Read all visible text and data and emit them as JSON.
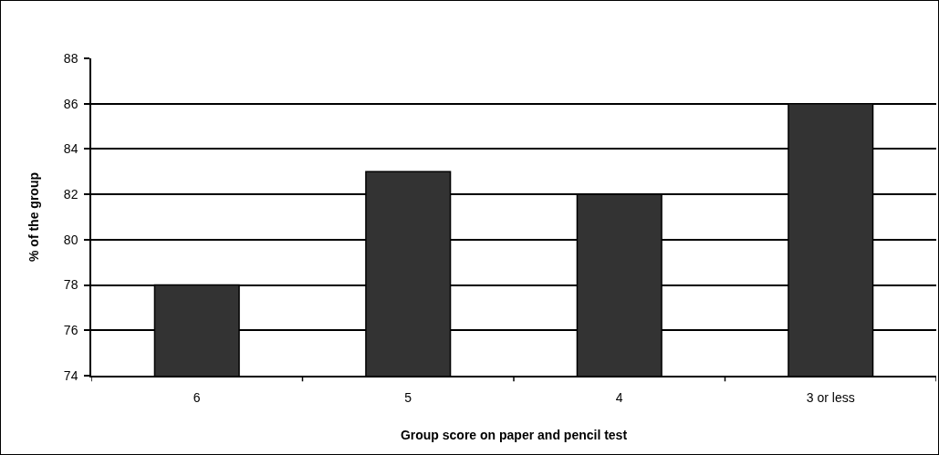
{
  "chart_data": {
    "type": "bar",
    "xlabel": "Group score on paper and pencil test",
    "ylabel": "% of the group",
    "categories": [
      "6",
      "5",
      "4",
      "3 or less"
    ],
    "values": [
      78,
      83,
      82,
      86
    ],
    "color": "#333333",
    "ylim": [
      74,
      88
    ],
    "yticks": [
      74,
      76,
      78,
      80,
      82,
      84,
      86,
      88
    ],
    "grid": "y"
  }
}
